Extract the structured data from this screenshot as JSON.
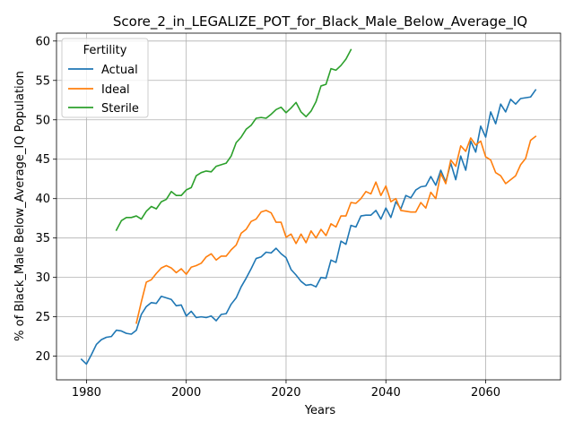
{
  "chart_data": {
    "type": "line",
    "title": "Score_2_in_LEGALIZE_POT_for_Black_Male_Below_Average_IQ",
    "xlabel": "Years",
    "ylabel": "% of Black_Male Below_Average_IQ Population",
    "xlim": [
      1974,
      2075
    ],
    "ylim": [
      17,
      61
    ],
    "xticks": [
      1980,
      2000,
      2020,
      2040,
      2060
    ],
    "yticks": [
      20,
      25,
      30,
      35,
      40,
      45,
      50,
      55,
      60
    ],
    "grid": true,
    "legend": {
      "title": "Fertility",
      "position": "upper-left"
    },
    "series": [
      {
        "name": "Actual",
        "color": "#1f77b4",
        "x": [
          1979,
          1980,
          1981,
          1982,
          1983,
          1984,
          1985,
          1986,
          1987,
          1988,
          1989,
          1990,
          1991,
          1992,
          1993,
          1994,
          1995,
          1996,
          1997,
          1998,
          1999,
          2000,
          2001,
          2002,
          2003,
          2004,
          2005,
          2006,
          2007,
          2008,
          2009,
          2010,
          2011,
          2012,
          2013,
          2014,
          2015,
          2016,
          2017,
          2018,
          2019,
          2020,
          2021,
          2022,
          2023,
          2024,
          2025,
          2026,
          2027,
          2028,
          2029,
          2030,
          2031,
          2032,
          2033,
          2034,
          2035,
          2036,
          2037,
          2038,
          2039,
          2040,
          2041,
          2042,
          2043,
          2044,
          2045,
          2046,
          2047,
          2048,
          2049,
          2050,
          2051,
          2052,
          2053,
          2054,
          2055,
          2056,
          2057,
          2058,
          2059,
          2060,
          2061,
          2062,
          2063,
          2064,
          2065,
          2066,
          2067,
          2068,
          2069,
          2070
        ],
        "values": [
          19.6,
          19.0,
          20.2,
          21.5,
          22.1,
          22.4,
          22.5,
          23.3,
          23.2,
          22.9,
          22.8,
          23.3,
          25.3,
          26.3,
          26.8,
          26.7,
          27.6,
          27.4,
          27.2,
          26.4,
          26.5,
          25.1,
          25.7,
          24.9,
          25.0,
          24.9,
          25.1,
          24.5,
          25.3,
          25.4,
          26.6,
          27.4,
          28.8,
          29.9,
          31.1,
          32.4,
          32.6,
          33.2,
          33.1,
          33.7,
          33.0,
          32.5,
          31.0,
          30.3,
          29.5,
          29.0,
          29.1,
          28.8,
          30.0,
          29.9,
          32.2,
          31.9,
          34.6,
          34.2,
          36.6,
          36.4,
          37.8,
          37.9,
          37.9,
          38.5,
          37.4,
          38.8,
          37.6,
          39.6,
          38.7,
          40.4,
          40.1,
          41.1,
          41.5,
          41.6,
          42.8,
          41.7,
          43.6,
          42.1,
          44.5,
          42.4,
          45.4,
          43.6,
          47.3,
          45.9,
          49.2,
          47.8,
          51.0,
          49.5,
          52.0,
          51.0,
          52.6,
          52.0,
          52.7,
          52.8,
          52.9,
          53.8
        ]
      },
      {
        "name": "Ideal",
        "color": "#ff7f0e",
        "x": [
          1990,
          1991,
          1992,
          1993,
          1994,
          1995,
          1996,
          1997,
          1998,
          1999,
          2000,
          2001,
          2002,
          2003,
          2004,
          2005,
          2006,
          2007,
          2008,
          2009,
          2010,
          2011,
          2012,
          2013,
          2014,
          2015,
          2016,
          2017,
          2018,
          2019,
          2020,
          2021,
          2022,
          2023,
          2024,
          2025,
          2026,
          2027,
          2028,
          2029,
          2030,
          2031,
          2032,
          2033,
          2034,
          2035,
          2036,
          2037,
          2038,
          2039,
          2040,
          2041,
          2042,
          2043,
          2044,
          2045,
          2046,
          2047,
          2048,
          2049,
          2050,
          2051,
          2052,
          2053,
          2054,
          2055,
          2056,
          2057,
          2058,
          2059,
          2060,
          2061,
          2062,
          2063,
          2064,
          2065,
          2066,
          2067,
          2068,
          2069,
          2070
        ],
        "values": [
          24.2,
          26.9,
          29.4,
          29.7,
          30.5,
          31.2,
          31.5,
          31.2,
          30.6,
          31.1,
          30.4,
          31.3,
          31.5,
          31.8,
          32.6,
          33.0,
          32.2,
          32.7,
          32.7,
          33.5,
          34.1,
          35.6,
          36.1,
          37.1,
          37.4,
          38.3,
          38.5,
          38.2,
          37.0,
          37.0,
          35.1,
          35.5,
          34.3,
          35.5,
          34.4,
          35.9,
          35.0,
          36.1,
          35.3,
          36.8,
          36.4,
          37.8,
          37.8,
          39.5,
          39.4,
          40.0,
          40.9,
          40.6,
          42.1,
          40.4,
          41.6,
          39.6,
          40.0,
          38.5,
          38.4,
          38.3,
          38.3,
          39.5,
          38.8,
          40.8,
          40.0,
          43.2,
          41.9,
          44.9,
          44.1,
          46.7,
          46.0,
          47.7,
          46.8,
          47.3,
          45.3,
          44.9,
          43.3,
          42.9,
          41.9,
          42.4,
          42.9,
          44.3,
          45.1,
          47.4,
          47.9
        ]
      },
      {
        "name": "Sterile",
        "color": "#2ca02c",
        "x": [
          1986,
          1987,
          1988,
          1989,
          1990,
          1991,
          1992,
          1993,
          1994,
          1995,
          1996,
          1997,
          1998,
          1999,
          2000,
          2001,
          2002,
          2003,
          2004,
          2005,
          2006,
          2007,
          2008,
          2009,
          2010,
          2011,
          2012,
          2013,
          2014,
          2015,
          2016,
          2017,
          2018,
          2019,
          2020,
          2021,
          2022,
          2023,
          2024,
          2025,
          2026,
          2027,
          2028,
          2029,
          2030,
          2031,
          2032,
          2033
        ],
        "values": [
          36.0,
          37.2,
          37.6,
          37.6,
          37.8,
          37.4,
          38.4,
          39.0,
          38.7,
          39.6,
          39.9,
          40.9,
          40.4,
          40.4,
          41.1,
          41.4,
          42.9,
          43.3,
          43.5,
          43.4,
          44.1,
          44.3,
          44.5,
          45.4,
          47.1,
          47.8,
          48.8,
          49.3,
          50.2,
          50.3,
          50.2,
          50.7,
          51.3,
          51.6,
          50.9,
          51.5,
          52.2,
          51.0,
          50.4,
          51.1,
          52.3,
          54.3,
          54.5,
          56.5,
          56.3,
          56.9,
          57.7,
          58.9
        ]
      }
    ]
  }
}
